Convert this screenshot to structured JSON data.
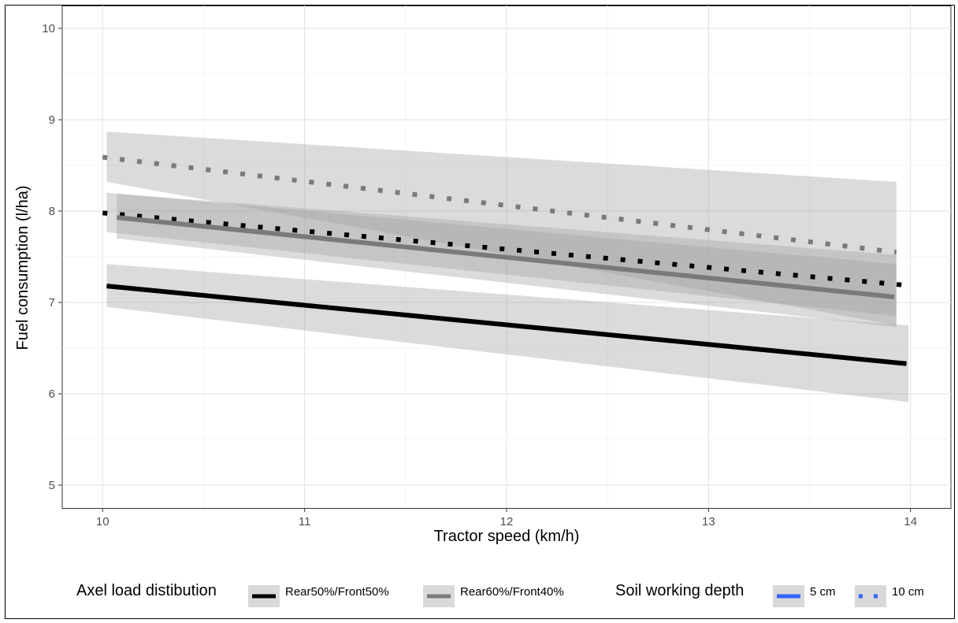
{
  "chart_data": {
    "type": "line",
    "xlabel": "Tractor speed (km/h)",
    "ylabel": "Fuel consumption (l/ha)",
    "xlim": [
      9.8,
      14.2
    ],
    "ylim": [
      4.75,
      10.25
    ],
    "x_ticks": [
      10,
      11,
      12,
      13,
      14
    ],
    "y_ticks": [
      5,
      6,
      7,
      8,
      9,
      10
    ],
    "grid": true,
    "legend_position": "bottom",
    "legend": {
      "groups": [
        {
          "title": "Axel load distibution",
          "items": [
            {
              "label": "Rear50%/Front50%",
              "color": "#000000",
              "style": "solid"
            },
            {
              "label": "Rear60%/Front40%",
              "color": "#7a7a7a",
              "style": "solid"
            }
          ]
        },
        {
          "title": "Soil working depth",
          "items": [
            {
              "label": "5 cm",
              "color": "#3366ff",
              "style": "solid"
            },
            {
              "label": "10 cm",
              "color": "#3366ff",
              "style": "dotted"
            }
          ]
        }
      ]
    },
    "series": [
      {
        "name": "Rear60%/Front40%, 10 cm",
        "color": "#7a7a7a",
        "style": "dotted",
        "x": [
          10.0,
          13.93
        ],
        "y": [
          8.59,
          7.55
        ],
        "ribbon_x": [
          10.02,
          13.93
        ],
        "ribbon_upper": [
          8.87,
          8.32
        ],
        "ribbon_lower": [
          8.32,
          6.75
        ]
      },
      {
        "name": "Rear50%/Front50%, 10 cm",
        "color": "#000000",
        "style": "dotted",
        "x": [
          10.0,
          13.97
        ],
        "y": [
          7.98,
          7.19
        ],
        "ribbon_x": [
          10.02,
          13.93
        ],
        "ribbon_upper": [
          8.2,
          7.52
        ],
        "ribbon_lower": [
          7.77,
          6.85
        ]
      },
      {
        "name": "Rear60%/Front40%, 5 cm",
        "color": "#7a7a7a",
        "style": "solid",
        "x": [
          10.07,
          13.92
        ],
        "y": [
          7.93,
          7.06
        ],
        "ribbon_x": [
          10.07,
          13.93
        ],
        "ribbon_upper": [
          8.19,
          7.42
        ],
        "ribbon_lower": [
          7.7,
          6.73
        ]
      },
      {
        "name": "Rear50%/Front50%, 5 cm",
        "color": "#000000",
        "style": "solid",
        "x": [
          10.02,
          13.98
        ],
        "y": [
          7.18,
          6.33
        ],
        "ribbon_x": [
          10.02,
          13.99
        ],
        "ribbon_upper": [
          7.42,
          6.75
        ],
        "ribbon_lower": [
          6.95,
          5.91
        ]
      }
    ]
  }
}
